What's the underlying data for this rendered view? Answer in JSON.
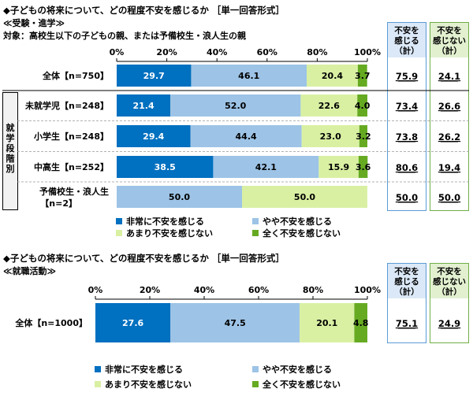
{
  "colors": {
    "very": "#0070c0",
    "some": "#9dc3e6",
    "little": "#d9f0a3",
    "none": "#66aa22",
    "blue_box_border": "#5b9bd5",
    "blue_box_fill": "#dbe8f7",
    "green_box_border": "#70ad47",
    "green_box_fill": "#e2f0d0"
  },
  "legend": {
    "very": "非常に不安を感じる",
    "some": "やや不安を感じる",
    "little": "あまり不安を感じない",
    "none": "全く不安を感じない"
  },
  "chart1": {
    "title": "◆子どもの将来について、どの程度不安を感じるか ［単一回答形式］",
    "section": "≪受験・進学≫",
    "target": "対象：高校生以下の子どもの親、または予備校生・浪人生の親",
    "group_label": "就学段階別",
    "header_anxious": "不安を\n感じる\n（計）",
    "header_not_anxious": "不安を\n感じない\n（計）",
    "ticks": [
      "0%",
      "20%",
      "40%",
      "60%",
      "80%",
      "100%"
    ],
    "rows": [
      {
        "label": "全体【n=750】",
        "anxious": "75.9",
        "not_anxious": "24.1"
      },
      {
        "label": "未就学児【n=248】",
        "anxious": "73.4",
        "not_anxious": "26.6"
      },
      {
        "label": "小学生【n=248】",
        "anxious": "73.8",
        "not_anxious": "26.2"
      },
      {
        "label": "中高生【n=252】",
        "anxious": "80.6",
        "not_anxious": "19.4"
      },
      {
        "label": "予備校生・浪人生",
        "label2": "【n=2】",
        "anxious": "50.0",
        "not_anxious": "50.0"
      }
    ]
  },
  "chart2": {
    "title": "◆子どもの将来について、どの程度不安を感じるか ［単一回答形式］",
    "section": "≪就職活動≫",
    "header_anxious": "不安を\n感じる\n（計）",
    "header_not_anxious": "不安を\n感じない\n（計）",
    "ticks": [
      "0%",
      "20%",
      "40%",
      "60%",
      "80%",
      "100%"
    ],
    "rows": [
      {
        "label": "全体【n=1000】",
        "anxious": "75.1",
        "not_anxious": "24.9"
      }
    ]
  },
  "chart_data": [
    {
      "type": "bar",
      "orientation": "horizontal-stacked-100",
      "title": "◆子どもの将来について、どの程度不安を感じるか ［単一回答形式］",
      "categories": [
        "全体【n=750】",
        "未就学児【n=248】",
        "小学生【n=248】",
        "中高生【n=252】",
        "予備校生・浪人生【n=2】"
      ],
      "series": [
        {
          "name": "非常に不安を感じる",
          "values": [
            29.7,
            21.4,
            29.4,
            38.5,
            0
          ]
        },
        {
          "name": "やや不安を感じる",
          "values": [
            46.1,
            52.0,
            44.4,
            42.1,
            50.0
          ]
        },
        {
          "name": "あまり不安を感じない",
          "values": [
            20.4,
            22.6,
            23.0,
            15.9,
            50.0
          ]
        },
        {
          "name": "全く不安を感じない",
          "values": [
            3.7,
            4.0,
            3.2,
            3.6,
            0
          ]
        }
      ],
      "xlim": [
        0,
        100
      ],
      "legend": "bottom"
    },
    {
      "type": "bar",
      "orientation": "horizontal-stacked-100",
      "title": "◆子どもの将来について、どの程度不安を感じるか ［単一回答形式］",
      "categories": [
        "全体【n=1000】"
      ],
      "series": [
        {
          "name": "非常に不安を感じる",
          "values": [
            27.6
          ]
        },
        {
          "name": "やや不安を感じる",
          "values": [
            47.5
          ]
        },
        {
          "name": "あまり不安を感じない",
          "values": [
            20.1
          ]
        },
        {
          "name": "全く不安を感じない",
          "values": [
            4.8
          ]
        }
      ],
      "xlim": [
        0,
        100
      ],
      "legend": "bottom"
    }
  ]
}
